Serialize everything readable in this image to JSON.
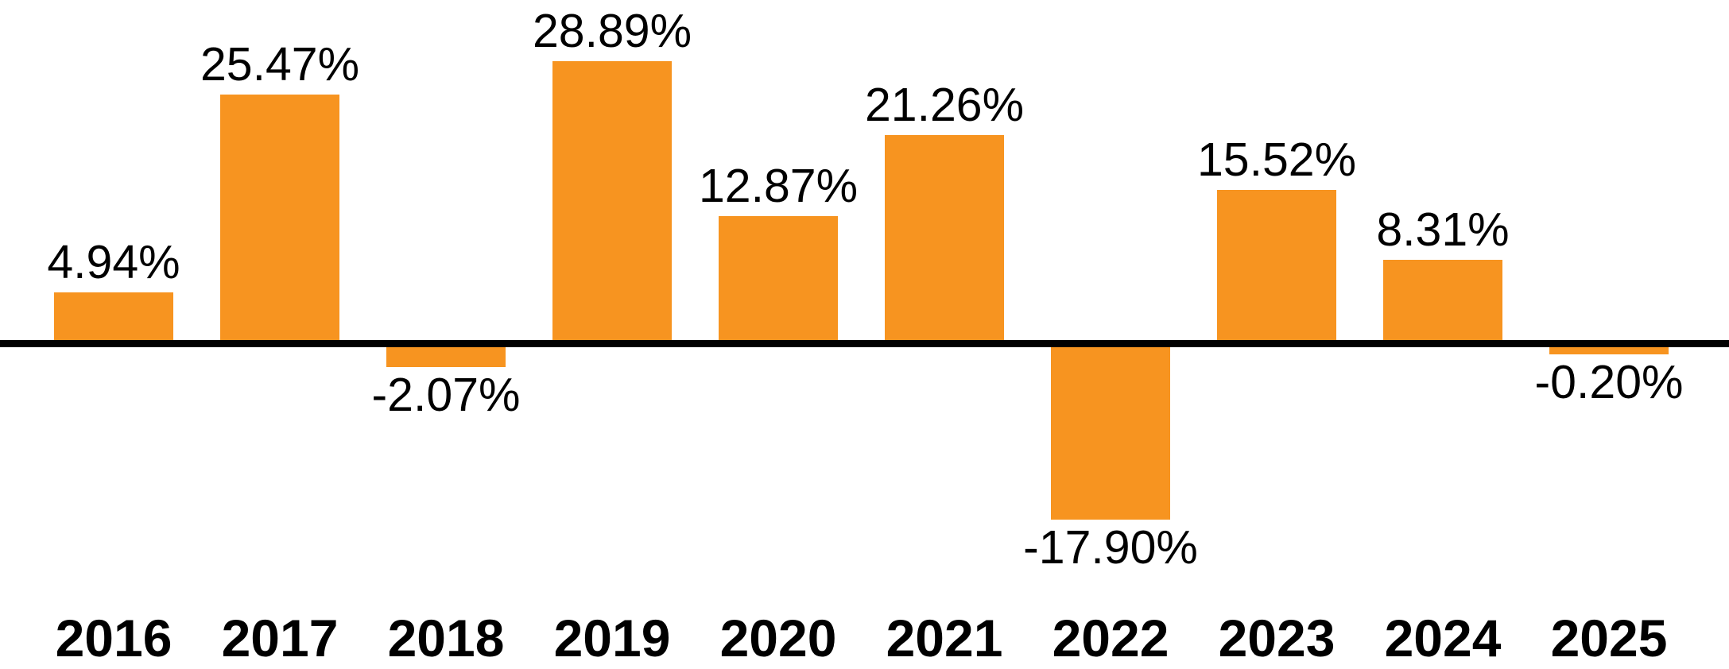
{
  "chart_data": {
    "type": "bar",
    "title": "",
    "xlabel": "",
    "ylabel": "",
    "categories": [
      "2016",
      "2017",
      "2018",
      "2019",
      "2020",
      "2021",
      "2022",
      "2023",
      "2024",
      "2025"
    ],
    "values": [
      4.94,
      25.47,
      -2.07,
      28.89,
      12.87,
      21.26,
      -17.9,
      15.52,
      8.31,
      -0.2
    ],
    "value_labels": [
      "4.94%",
      "25.47%",
      "-2.07%",
      "28.89%",
      "12.87%",
      "21.26%",
      "-17.90%",
      "15.52%",
      "8.31%",
      "-0.20%"
    ],
    "ylim": [
      -20,
      30
    ],
    "grid": false,
    "legend": "none",
    "baseline": 0,
    "colors": {
      "bar": "#F79420",
      "axis_line": "#000000",
      "text": "#000000",
      "background": "#FFFFFF"
    }
  }
}
